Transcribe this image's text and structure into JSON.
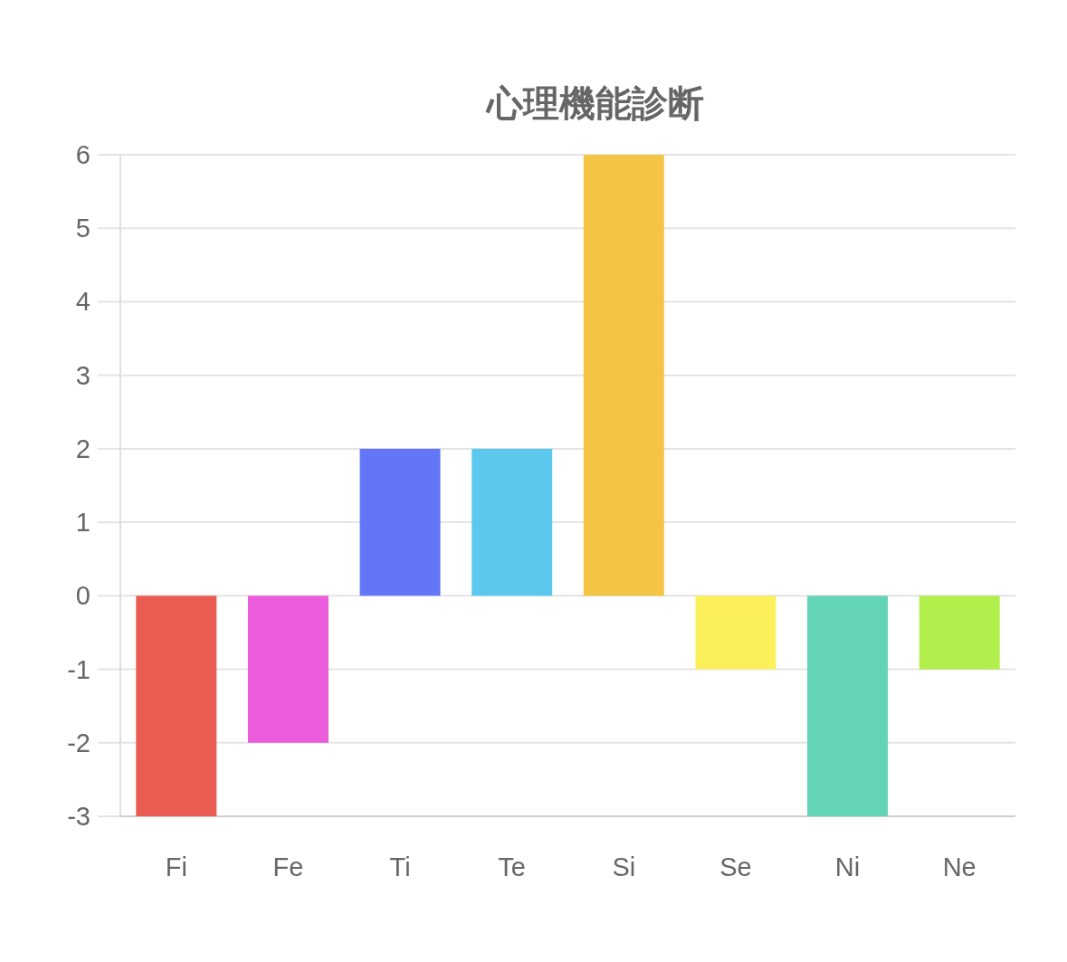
{
  "chart_data": {
    "type": "bar",
    "title": "心理機能診断",
    "categories": [
      "Fi",
      "Fe",
      "Ti",
      "Te",
      "Si",
      "Se",
      "Ni",
      "Ne"
    ],
    "values": [
      -3,
      -2,
      2,
      2,
      6,
      -1,
      -3,
      -1
    ],
    "colors": [
      "#ea5b52",
      "#eb5cdc",
      "#6376f7",
      "#5dc8ee",
      "#f4c444",
      "#fbef5a",
      "#64d4b6",
      "#b2ef4c"
    ],
    "ylim": [
      -3,
      6
    ],
    "yticks": [
      -3,
      -2,
      -1,
      0,
      1,
      2,
      3,
      4,
      5,
      6
    ],
    "grid": "y"
  }
}
